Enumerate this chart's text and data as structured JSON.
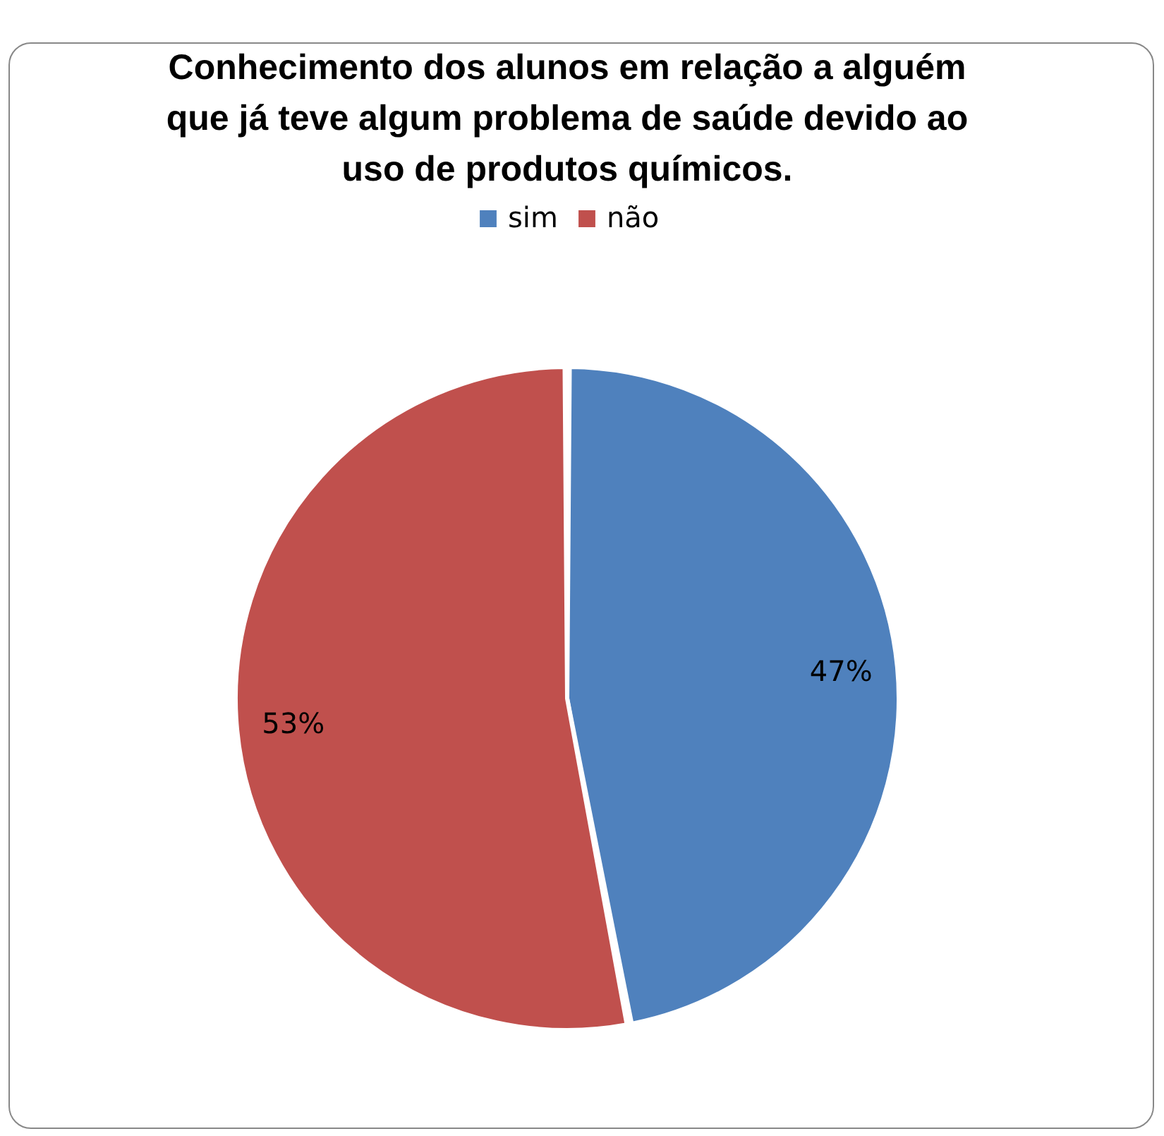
{
  "chart_data": {
    "type": "pie",
    "title": "Conhecimento dos alunos em relação a alguém que já teve algum problema de saúde devido ao uso de produtos químicos.",
    "categories": [
      "sim",
      "não"
    ],
    "values": [
      47,
      53
    ],
    "colors": [
      "#4f81bd",
      "#c0504d"
    ],
    "value_labels": [
      "47%",
      "53%"
    ],
    "legend": "top"
  }
}
